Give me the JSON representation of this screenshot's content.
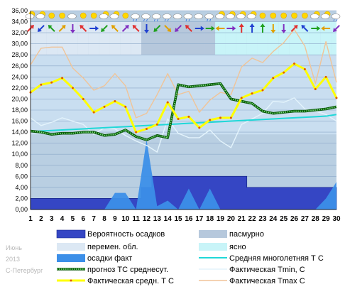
{
  "watermark": {
    "month": "Июнь",
    "year": "2013",
    "city": "С-Петербург"
  },
  "chart_data": {
    "type": "line",
    "y_ticks": [
      "0,00",
      "2,00",
      "4,00",
      "6,00",
      "8,00",
      "10,00",
      "12,00",
      "14,00",
      "16,00",
      "18,00",
      "20,00",
      "22,00",
      "24,00",
      "26,00",
      "28,00",
      "30,00",
      "32,00",
      "34,00",
      "36,00"
    ],
    "ylim": [
      0,
      36
    ],
    "x": [
      1,
      2,
      3,
      4,
      5,
      6,
      7,
      8,
      9,
      10,
      11,
      12,
      13,
      14,
      15,
      16,
      17,
      18,
      19,
      20,
      21,
      22,
      23,
      24,
      25,
      26,
      27,
      28,
      29,
      30
    ],
    "colors": {
      "precip_prob": "#3546c4",
      "overcast": "#b6c8dc",
      "variable": "#dce8f4",
      "clear": "#c8f4f8",
      "precip_fact": "#3c8fe8",
      "forecast": "#0a7a10",
      "normal": "#20d8d8",
      "tmin": "#e4f4fc",
      "tavg": "#ffff00",
      "tmax": "#f0c498"
    },
    "legend": [
      {
        "key": "precip_prob",
        "label": "Вероятность осадков"
      },
      {
        "key": "overcast",
        "label": "пасмурно"
      },
      {
        "key": "variable",
        "label": "перемен. обл."
      },
      {
        "key": "clear",
        "label": "ясно"
      },
      {
        "key": "precip_fact",
        "label": "осадки факт"
      },
      {
        "key": "normal",
        "label": "Средняя многолетняя Т С"
      },
      {
        "key": "forecast",
        "label": "прогноз ТС среднесут."
      },
      {
        "key": "tmin",
        "label": "Фактическая Tmin, С"
      },
      {
        "key": "tavg",
        "label": "Фактическая средн. Т С"
      },
      {
        "key": "tmax",
        "label": "Фактическая Tmax С"
      }
    ],
    "series": {
      "tavg": [
        21.2,
        22.6,
        23.0,
        23.8,
        22.0,
        20.0,
        17.6,
        18.6,
        19.6,
        18.6,
        14.0,
        14.6,
        15.4,
        19.4,
        16.4,
        16.8,
        14.8,
        16.2,
        16.6,
        16.6,
        20.2,
        21.0,
        21.6,
        23.8,
        24.8,
        26.4,
        25.4,
        21.8,
        24.0,
        20.2
      ],
      "tmax": [
        26.2,
        29.2,
        29.4,
        29.4,
        25.6,
        23.8,
        21.6,
        22.4,
        24.6,
        22.4,
        16.6,
        17.4,
        20.8,
        24.6,
        20.8,
        21.4,
        17.6,
        19.8,
        21.2,
        20.8,
        25.8,
        27.4,
        26.6,
        28.6,
        30.2,
        32.6,
        29.6,
        22.8,
        30.4,
        23.0
      ],
      "tmin": [
        16.6,
        15.2,
        15.8,
        16.6,
        16.0,
        15.4,
        13.6,
        14.8,
        14.6,
        13.4,
        12.4,
        11.6,
        10.4,
        16.4,
        13.8,
        13.0,
        13.0,
        14.4,
        12.4,
        11.2,
        15.4,
        16.4,
        17.4,
        19.6,
        19.4,
        20.2,
        18.2,
        17.8,
        17.2,
        16.0
      ],
      "forecast": [
        14.2,
        14.0,
        13.6,
        13.8,
        13.8,
        14.0,
        14.0,
        13.4,
        13.6,
        14.4,
        13.2,
        12.6,
        13.4,
        13.0,
        22.6,
        22.2,
        22.4,
        22.6,
        22.8,
        20.0,
        19.6,
        19.2,
        17.8,
        17.4,
        17.6,
        17.8,
        17.8,
        18.0,
        18.2,
        18.6
      ],
      "normal": [
        14.1,
        14.2,
        14.3,
        14.4,
        14.5,
        14.6,
        14.7,
        14.8,
        14.9,
        15.0,
        15.1,
        15.2,
        15.3,
        15.4,
        15.5,
        15.6,
        15.7,
        15.8,
        15.9,
        16.0,
        16.1,
        16.2,
        16.3,
        16.4,
        16.5,
        16.6,
        16.7,
        16.8,
        16.9,
        17.2
      ],
      "precip_fact": [
        0,
        0,
        0,
        0,
        0,
        0,
        0,
        0,
        3.0,
        3.0,
        0,
        12.6,
        0.6,
        1.6,
        0,
        3.8,
        0,
        3.8,
        0,
        0,
        0,
        0,
        0,
        0,
        0,
        0,
        0,
        0,
        2.0,
        5.0
      ],
      "precip_prob": [
        2,
        2,
        2,
        2,
        2,
        2,
        2,
        2,
        2,
        2,
        2,
        4,
        6,
        6,
        6,
        6,
        6,
        6,
        6,
        6,
        6,
        4,
        4,
        4,
        4,
        4,
        4,
        4,
        4,
        4
      ],
      "cloud": [
        "variable",
        "variable",
        "variable",
        "variable",
        "variable",
        "variable",
        "variable",
        "variable",
        "variable",
        "variable",
        "variable",
        "overcast",
        "overcast",
        "overcast",
        "overcast",
        "overcast",
        "overcast",
        "overcast",
        "clear",
        "clear",
        "clear",
        "clear",
        "clear",
        "clear",
        "clear",
        "clear",
        "clear",
        "clear",
        "clear",
        "clear"
      ]
    },
    "weather_icons": {
      "top_row": [
        "cloud-sun",
        "cloud-sun",
        "sun",
        "sun",
        "cloud",
        "sun",
        "sun",
        "cloud-sun",
        "cloud-sun",
        "sun",
        "cloud-rain",
        "cloud-rain",
        "cloud-rain",
        "cloud-rain",
        "cloud",
        "cloud-rain",
        "cloud",
        "cloud-rain",
        "cloud-sun",
        "cloud-sun",
        "cloud-sun",
        "cloud-sun",
        "sun",
        "sun",
        "sun",
        "sun",
        "sun",
        "cloud-sun",
        "cloud-sun",
        "cloud-rain"
      ],
      "wind_row": [
        "arrow-ne",
        "arrow-sw",
        "arrow-nw",
        "arrow-ne",
        "arrow-s",
        "arrow-nw",
        "arrow-e",
        "arrow-sw",
        "arrow-nw",
        "arrow-ne",
        "arrow-nw",
        "arrow-s",
        "arrow-sw",
        "arrow-se",
        "arrow-sw",
        "arrow-nw",
        "arrow-e",
        "arrow-e",
        "arrow-w",
        "arrow-e",
        "arrow-n",
        "arrow-n",
        "arrow-n",
        "arrow-s",
        "arrow-s",
        "arrow-ne",
        "arrow-nw",
        "arrow-e",
        "arrow-w",
        "arrow-sw"
      ]
    }
  }
}
